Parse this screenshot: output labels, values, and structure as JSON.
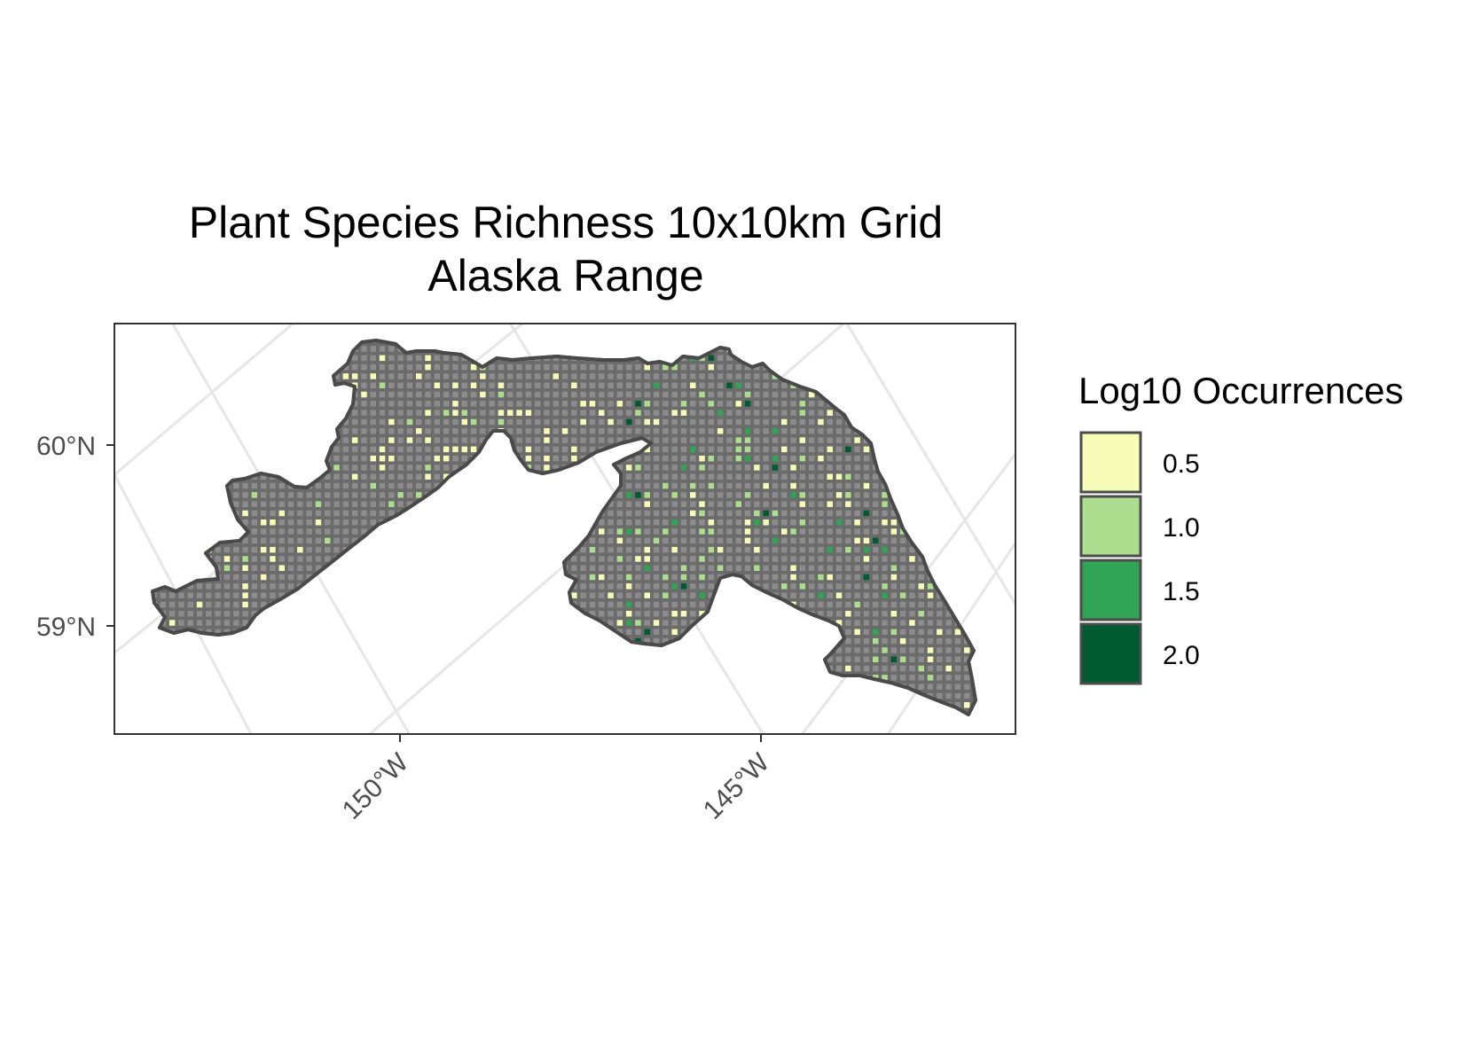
{
  "title": {
    "line1": "Plant Species Richness 10x10km Grid",
    "line2": "Alaska Range"
  },
  "axes": {
    "x_ticks": [
      "150°W",
      "145°W"
    ],
    "y_ticks": [
      "60°N",
      "59°N"
    ]
  },
  "legend": {
    "title": "Log10 Occurrences",
    "items": [
      {
        "label": "0.5",
        "color": "#f7fcb9"
      },
      {
        "label": "1.0",
        "color": "#addd8e"
      },
      {
        "label": "1.5",
        "color": "#31a354"
      },
      {
        "label": "2.0",
        "color": "#005a32"
      }
    ]
  },
  "colors": {
    "region_fill": "#6b6b6b",
    "region_outline": "#4a4a4a",
    "no_data_cell": "#8c8c8c",
    "graticule": "#e6e6e6",
    "panel_border": "#333333"
  }
}
